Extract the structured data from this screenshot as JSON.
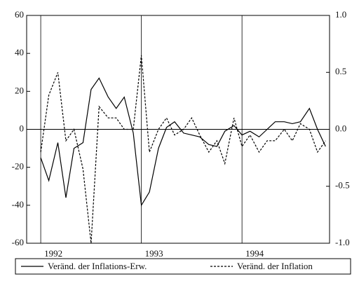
{
  "chart_data": {
    "type": "line",
    "x": [
      1992,
      1992.08,
      1992.17,
      1992.25,
      1992.33,
      1992.42,
      1992.5,
      1992.58,
      1992.67,
      1992.75,
      1992.83,
      1992.92,
      1993,
      1993.08,
      1993.17,
      1993.25,
      1993.33,
      1993.42,
      1993.5,
      1993.58,
      1993.67,
      1993.75,
      1993.83,
      1993.92,
      1994,
      1994.08,
      1994.17,
      1994.25,
      1994.33,
      1994.42,
      1994.5,
      1994.58,
      1994.67,
      1994.75,
      1994.83
    ],
    "series": [
      {
        "name": "Veränd. der Inflations-Erw.",
        "color": "#000000",
        "dash": "solid",
        "values": [
          -15,
          -27,
          -7,
          -36,
          -10,
          -7,
          21,
          27,
          17,
          11,
          17,
          -2,
          -40,
          -33,
          -10,
          1,
          4,
          -2,
          -3,
          -4,
          -8,
          -9,
          -1,
          2,
          -3,
          -1,
          -4,
          0,
          4,
          4,
          3,
          4,
          11,
          0,
          -9
        ]
      },
      {
        "name": "Veränd. der Inflation",
        "color": "#000000",
        "dash": "dashed",
        "axis": "y2",
        "values": [
          -0.2,
          0.3,
          0.5,
          -0.1,
          0.0,
          -0.35,
          -1.0,
          0.2,
          0.1,
          0.1,
          0.0,
          0.0,
          0.65,
          -0.2,
          0.0,
          0.1,
          -0.05,
          0.0,
          0.1,
          -0.05,
          -0.2,
          -0.1,
          -0.3,
          0.1,
          -0.15,
          -0.05,
          -0.2,
          -0.1,
          -0.1,
          0.0,
          -0.1,
          0.05,
          0.0,
          -0.2,
          -0.1
        ]
      }
    ],
    "xlim": [
      1991.86,
      1994.87
    ],
    "xticks": [
      1992,
      1993,
      1994
    ],
    "ylim": [
      -60,
      60
    ],
    "yticks": [
      -60,
      -40,
      -20,
      0,
      20,
      40,
      60
    ],
    "y2lim": [
      -1,
      1
    ],
    "y2ticks": [
      {
        "value": -1,
        "label": "-1.0"
      },
      {
        "value": -0.5,
        "label": "-0.5"
      },
      {
        "value": 0,
        "label": "0.0"
      },
      {
        "value": 0.5,
        "label": "0.5"
      },
      {
        "value": 1,
        "label": "1.0"
      }
    ],
    "legend": "bottom"
  }
}
